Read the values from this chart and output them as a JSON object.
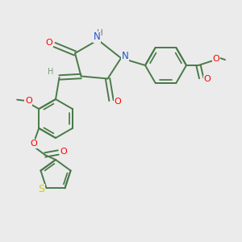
{
  "bg_color": "#ebebeb",
  "bond_color": "#4a7a4a",
  "bond_width": 1.4,
  "fig_size": [
    3.0,
    3.0
  ],
  "dpi": 100,
  "xlim": [
    0,
    10
  ],
  "ylim": [
    0,
    10
  ]
}
